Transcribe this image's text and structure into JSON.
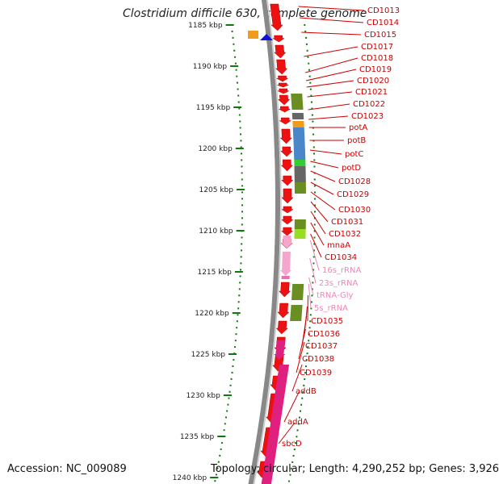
{
  "title": "Clostridium difficile 630, complete genome",
  "accession": "Accession: NC_009089",
  "topology": "Topology: circular; Length: 4,290,252 bp; Genes: 3,926",
  "colors": {
    "cds": "#ee1111",
    "rrna": "#f4a6cf",
    "trna": "#ee6fb0",
    "label_cds": "#cc0000",
    "label_rna": "#e88ab8",
    "tick": "#117711",
    "olive": "#6b8e23",
    "blue": "#4a86c8",
    "gray": "#666666",
    "orange": "#f29a1a",
    "green": "#33cc33",
    "magenta": "#e0207f"
  },
  "kbp_ticks": [
    {
      "kbp": 1185,
      "label": "1185 kbp"
    },
    {
      "kbp": 1190,
      "label": "1190 kbp"
    },
    {
      "kbp": 1195,
      "label": "1195 kbp"
    },
    {
      "kbp": 1200,
      "label": "1200 kbp"
    },
    {
      "kbp": 1205,
      "label": "1205 kbp"
    },
    {
      "kbp": 1210,
      "label": "1210 kbp"
    },
    {
      "kbp": 1215,
      "label": "1215 kbp"
    },
    {
      "kbp": 1220,
      "label": "1220 kbp"
    },
    {
      "kbp": 1225,
      "label": "1225 kbp"
    },
    {
      "kbp": 1230,
      "label": "1230 kbp"
    },
    {
      "kbp": 1235,
      "label": "1235 kbp"
    },
    {
      "kbp": 1240,
      "label": "1240 kbp"
    }
  ],
  "gene_labels": [
    {
      "text": "CD1013",
      "type": "cds"
    },
    {
      "text": "CD1014",
      "type": "cds"
    },
    {
      "text": "CD1015",
      "type": "cds"
    },
    {
      "text": "CD1017",
      "type": "cds"
    },
    {
      "text": "CD1018",
      "type": "cds"
    },
    {
      "text": "CD1019",
      "type": "cds"
    },
    {
      "text": "CD1020",
      "type": "cds"
    },
    {
      "text": "CD1021",
      "type": "cds"
    },
    {
      "text": "CD1022",
      "type": "cds"
    },
    {
      "text": "CD1023",
      "type": "cds"
    },
    {
      "text": "potA",
      "type": "cds"
    },
    {
      "text": "potB",
      "type": "cds"
    },
    {
      "text": "potC",
      "type": "cds"
    },
    {
      "text": "potD",
      "type": "cds"
    },
    {
      "text": "CD1028",
      "type": "cds"
    },
    {
      "text": "CD1029",
      "type": "cds"
    },
    {
      "text": "CD1030",
      "type": "cds"
    },
    {
      "text": "CD1031",
      "type": "cds"
    },
    {
      "text": "CD1032",
      "type": "cds"
    },
    {
      "text": "mnaA",
      "type": "cds"
    },
    {
      "text": "CD1034",
      "type": "cds"
    },
    {
      "text": "16s_rRNA",
      "type": "rna"
    },
    {
      "text": "23s_rRNA",
      "type": "rna"
    },
    {
      "text": "tRNA-Gly",
      "type": "rna"
    },
    {
      "text": "5s_rRNA",
      "type": "rna"
    },
    {
      "text": "CD1035",
      "type": "cds"
    },
    {
      "text": "CD1036",
      "type": "cds"
    },
    {
      "text": "CD1037",
      "type": "cds"
    },
    {
      "text": "CD1038",
      "type": "cds"
    },
    {
      "text": "CD1039",
      "type": "cds"
    },
    {
      "text": "addB",
      "type": "cds"
    },
    {
      "text": "addA",
      "type": "cds"
    },
    {
      "text": "sbcD",
      "type": "cds"
    }
  ]
}
